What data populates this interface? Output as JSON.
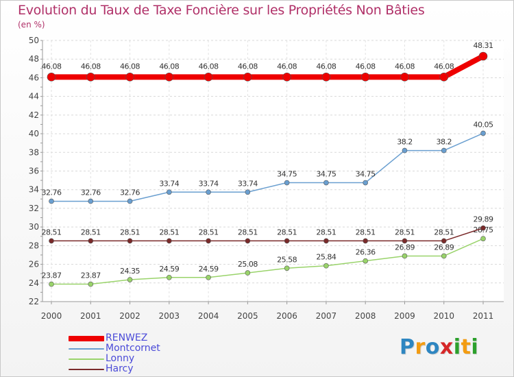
{
  "header": {
    "title": "Evolution du Taux de Taxe Foncière sur les Propriétés Non Bâties",
    "subtitle": "(en %)"
  },
  "logo": {
    "text": "Proxiti",
    "letters": [
      {
        "ch": "P",
        "color": "#2e86c1"
      },
      {
        "ch": "r",
        "color": "#f39c12"
      },
      {
        "ch": "o",
        "color": "#2e86c1"
      },
      {
        "ch": "x",
        "color": "#d62728"
      },
      {
        "ch": "i",
        "color": "#2ca02c"
      },
      {
        "ch": "t",
        "color": "#f39c12"
      },
      {
        "ch": "i",
        "color": "#2ca02c"
      }
    ]
  },
  "chart_data": {
    "type": "line",
    "title": "Evolution du Taux de Taxe Foncière sur les Propriétés Non Bâties",
    "ylabel": "(en %)",
    "xlabel": "",
    "x": [
      "2000",
      "2001",
      "2002",
      "2003",
      "2004",
      "2005",
      "2006",
      "2007",
      "2008",
      "2009",
      "2010",
      "2011"
    ],
    "ylim": [
      22,
      50
    ],
    "yticks": [
      22,
      24,
      26,
      28,
      30,
      32,
      34,
      36,
      38,
      40,
      42,
      44,
      46,
      48,
      50
    ],
    "grid": true,
    "legend": "bottom-left",
    "series": [
      {
        "name": "RENWEZ",
        "color": "#ee0000",
        "values": [
          46.08,
          46.08,
          46.08,
          46.08,
          46.08,
          46.08,
          46.08,
          46.08,
          46.08,
          46.08,
          46.08,
          48.31
        ],
        "labels": [
          "46.08",
          "46.08",
          "46.08",
          "46.08",
          "46.08",
          "46.08",
          "46.08",
          "46.08",
          "46.08",
          "46.08",
          "46.08",
          "48.31"
        ]
      },
      {
        "name": "Montcornet",
        "color": "#6a9fd0",
        "values": [
          32.76,
          32.76,
          32.76,
          33.74,
          33.74,
          33.74,
          34.75,
          34.75,
          34.75,
          38.2,
          38.2,
          40.05
        ],
        "labels": [
          "32.76",
          "32.76",
          "32.76",
          "33.74",
          "33.74",
          "33.74",
          "34.75",
          "34.75",
          "34.75",
          "38.2",
          "38.2",
          "40.05"
        ]
      },
      {
        "name": "Lonny",
        "color": "#99d36a",
        "values": [
          23.87,
          23.87,
          24.35,
          24.59,
          24.59,
          25.08,
          25.58,
          25.84,
          26.36,
          26.89,
          26.89,
          28.75
        ],
        "labels": [
          "23.87",
          "23.87",
          "24.35",
          "24.59",
          "24.59",
          "25.08",
          "25.58",
          "25.84",
          "26.36",
          "26.89",
          "26.89",
          "28.75"
        ]
      },
      {
        "name": "Harcy",
        "color": "#7a2a2a",
        "values": [
          28.51,
          28.51,
          28.51,
          28.51,
          28.51,
          28.51,
          28.51,
          28.51,
          28.51,
          28.51,
          28.51,
          29.89
        ],
        "labels": [
          "28.51",
          "28.51",
          "28.51",
          "28.51",
          "28.51",
          "28.51",
          "28.51",
          "28.51",
          "28.51",
          "28.51",
          "28.51",
          "29.89"
        ]
      }
    ]
  }
}
